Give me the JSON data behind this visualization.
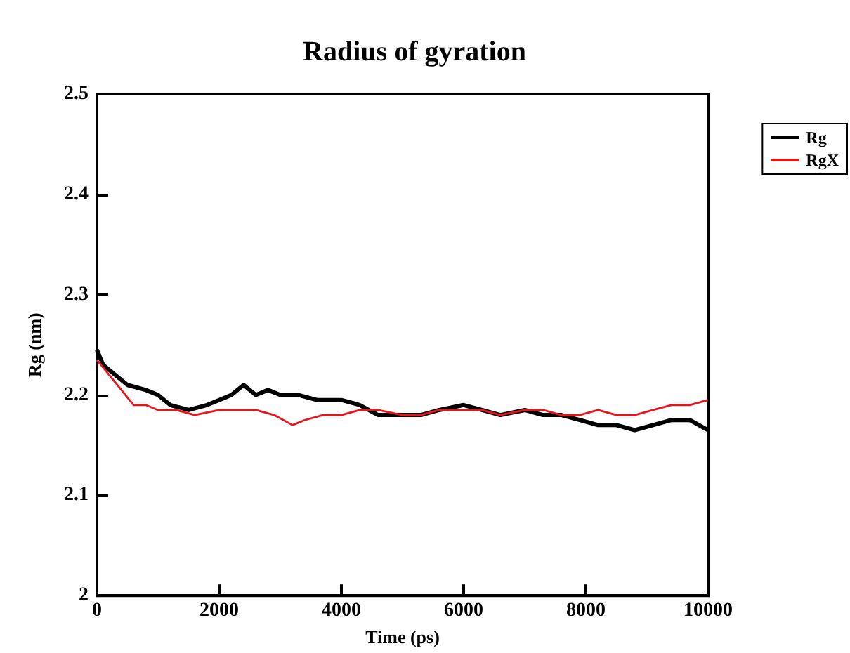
{
  "chart_data": {
    "type": "line",
    "title": "Radius of gyration",
    "xlabel": "Time (ps)",
    "ylabel": "Rg (nm)",
    "xlim": [
      0,
      10000
    ],
    "xticks": [
      0,
      2000,
      4000,
      6000,
      8000,
      10000
    ],
    "ylim": [
      2,
      2.5
    ],
    "yticks": [
      2,
      2.1,
      2.2,
      2.3,
      2.4,
      2.5
    ],
    "grid": false,
    "legend": "top right",
    "marker": "none",
    "line_style": "solid",
    "series": [
      {
        "name": "Rg",
        "color": "#000000",
        "x": [
          0,
          100,
          300,
          500,
          800,
          1000,
          1200,
          1500,
          1800,
          2000,
          2200,
          2400,
          2600,
          2800,
          3000,
          3300,
          3600,
          4000,
          4300,
          4600,
          5000,
          5300,
          5600,
          6000,
          6300,
          6600,
          7000,
          7300,
          7600,
          7900,
          8200,
          8500,
          8800,
          9100,
          9400,
          9700,
          10000
        ],
        "values": [
          2.245,
          2.23,
          2.22,
          2.21,
          2.205,
          2.2,
          2.19,
          2.185,
          2.19,
          2.195,
          2.2,
          2.21,
          2.2,
          2.205,
          2.2,
          2.2,
          2.195,
          2.195,
          2.19,
          2.18,
          2.18,
          2.18,
          2.185,
          2.19,
          2.185,
          2.18,
          2.185,
          2.18,
          2.18,
          2.175,
          2.17,
          2.17,
          2.165,
          2.17,
          2.175,
          2.175,
          2.165
        ]
      },
      {
        "name": "RgX",
        "color": "#e8141c",
        "x": [
          0,
          200,
          400,
          600,
          800,
          1000,
          1300,
          1600,
          2000,
          2300,
          2600,
          2900,
          3200,
          3400,
          3700,
          4000,
          4300,
          4600,
          5000,
          5300,
          5600,
          6000,
          6300,
          6600,
          7000,
          7300,
          7600,
          7900,
          8200,
          8500,
          8800,
          9100,
          9400,
          9700,
          10000
        ],
        "values": [
          2.235,
          2.22,
          2.205,
          2.19,
          2.19,
          2.185,
          2.185,
          2.18,
          2.185,
          2.185,
          2.185,
          2.18,
          2.17,
          2.175,
          2.18,
          2.18,
          2.185,
          2.185,
          2.18,
          2.18,
          2.185,
          2.185,
          2.185,
          2.18,
          2.185,
          2.185,
          2.18,
          2.18,
          2.185,
          2.18,
          2.18,
          2.185,
          2.19,
          2.19,
          2.195
        ]
      }
    ]
  }
}
